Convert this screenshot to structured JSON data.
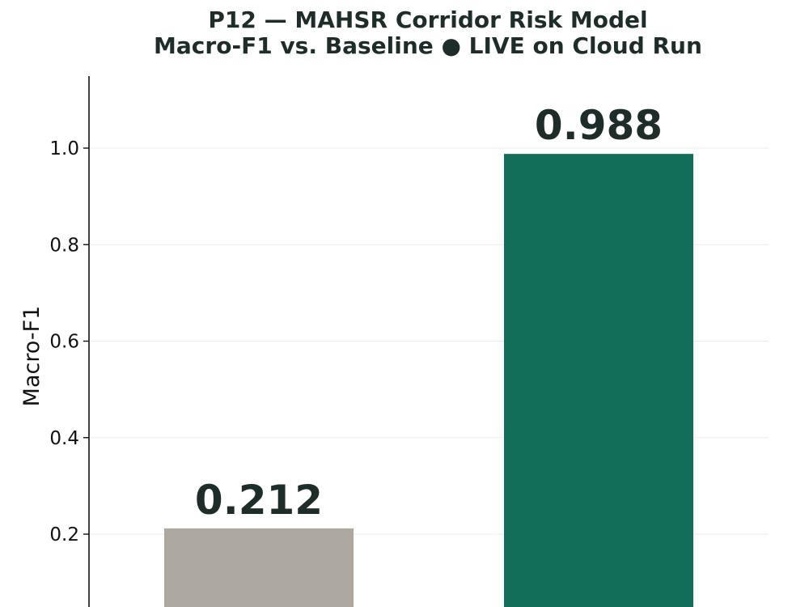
{
  "chart_data": {
    "type": "bar",
    "title": "P12 — MAHSR Corridor Risk Model",
    "subtitle": "Macro-F1 vs. Baseline  ● LIVE on Cloud Run",
    "xlabel": "",
    "ylabel": "Macro-F1",
    "series": [
      {
        "values": [
          0.212,
          0.988
        ],
        "colors": [
          "#aea9a0",
          "#126e57"
        ],
        "data_labels": [
          "0.212",
          "0.988"
        ]
      }
    ],
    "yticks": [
      0.2,
      0.4,
      0.6,
      0.8,
      1.0
    ],
    "ytick_labels": [
      "0.2",
      "0.4",
      "0.6",
      "0.8",
      "1.0"
    ],
    "ylim": [
      0.05,
      1.15
    ],
    "grid": "horizontal",
    "legend": "none"
  },
  "colors": {
    "title": "#1f2d2a",
    "grid": "#ebebeb",
    "axis": "#111111"
  }
}
